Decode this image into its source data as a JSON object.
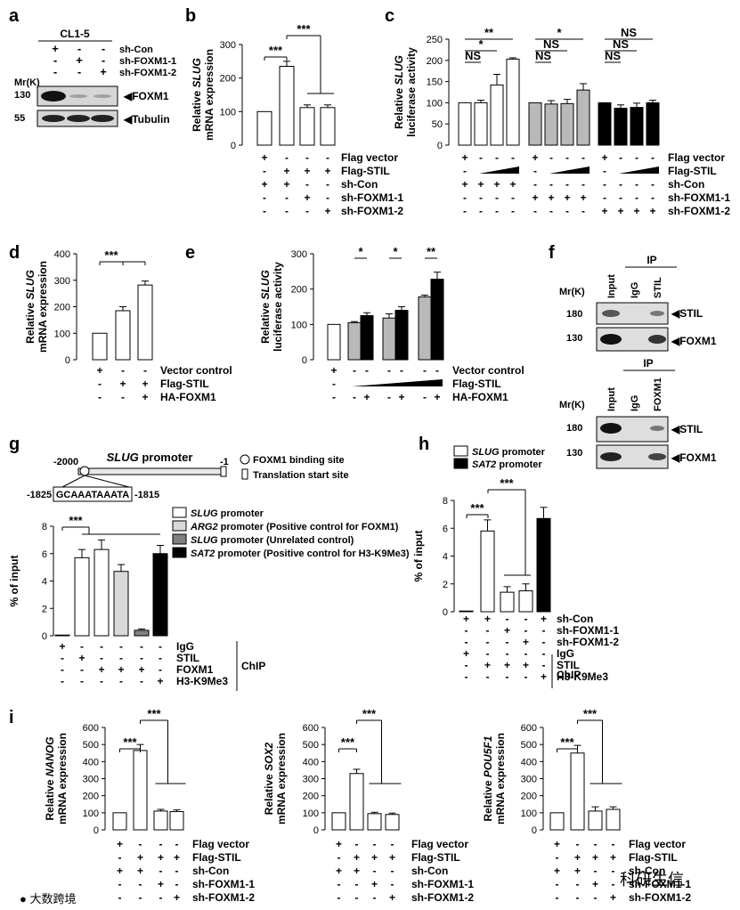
{
  "panels": {
    "a": "a",
    "b": "b",
    "c": "c",
    "d": "d",
    "e": "e",
    "f": "f",
    "g": "g",
    "h": "h",
    "i": "i"
  },
  "a": {
    "cell_line": "CL1-5",
    "rows": [
      "sh-Con",
      "sh-FOXM1-1",
      "sh-FOXM1-2"
    ],
    "signs": [
      [
        "+",
        "-",
        "-"
      ],
      [
        "-",
        "+",
        "-"
      ],
      [
        "-",
        "-",
        "+"
      ]
    ],
    "mr": "Mr(K)",
    "m130": "130",
    "m55": "55",
    "b1": "FOXM1",
    "b2": "Tubulin"
  },
  "chart_data": [
    {
      "id": "b",
      "type": "bar",
      "ylabel_gene": "SLUG",
      "ylabel_pre": "Relative ",
      "ylabel2": "mRNA expression",
      "ylim": [
        0,
        300
      ],
      "yticks": [
        "0",
        "100",
        "200",
        "300"
      ],
      "values": [
        100,
        235,
        112,
        112
      ],
      "errors": [
        0,
        15,
        8,
        8
      ],
      "colors": [
        "#ffffff",
        "#ffffff",
        "#ffffff",
        "#ffffff"
      ],
      "sig": [
        "***",
        "***"
      ],
      "rows": [
        {
          "label": "Flag vector",
          "signs": [
            "+",
            "-",
            "-",
            "-"
          ]
        },
        {
          "label": "Flag-STIL",
          "signs": [
            "-",
            "+",
            "+",
            "+"
          ]
        },
        {
          "label": "sh-Con",
          "signs": [
            "+",
            "+",
            "-",
            "-"
          ]
        },
        {
          "label": "sh-FOXM1-1",
          "signs": [
            "-",
            "-",
            "+",
            "-"
          ]
        },
        {
          "label": "sh-FOXM1-2",
          "signs": [
            "-",
            "-",
            "-",
            "+"
          ]
        }
      ]
    },
    {
      "id": "c",
      "type": "bar",
      "ylabel_gene": "SLUG",
      "ylabel_pre": "Relative ",
      "ylabel2": "luciferase activity",
      "ylim": [
        0,
        250
      ],
      "yticks": [
        "0",
        "50",
        "100",
        "150",
        "200",
        "250"
      ],
      "values": [
        100,
        100,
        142,
        203,
        100,
        97,
        98,
        130,
        100,
        87,
        89,
        100
      ],
      "errors": [
        0,
        6,
        25,
        3,
        0,
        8,
        10,
        15,
        0,
        8,
        10,
        6
      ],
      "colors": [
        "#ffffff",
        "#ffffff",
        "#ffffff",
        "#ffffff",
        "#b9b9b9",
        "#b9b9b9",
        "#b9b9b9",
        "#b9b9b9",
        "#000000",
        "#000000",
        "#000000",
        "#000000"
      ],
      "sig": [
        "**",
        "*",
        "NS",
        "NS",
        "*",
        "NS",
        "NS",
        "NS",
        "NS"
      ],
      "rows": [
        {
          "label": "Flag vector",
          "signs": [
            "+",
            "-",
            "-",
            "-",
            "+",
            "-",
            "-",
            "-",
            "+",
            "-",
            "-",
            "-"
          ]
        },
        {
          "label": "Flag-STIL",
          "signs": [
            "-",
            "",
            "",
            "",
            "-",
            "",
            "",
            "",
            "-",
            "",
            "",
            ""
          ]
        },
        {
          "label": "sh-Con",
          "signs": [
            "+",
            "+",
            "+",
            "+",
            "-",
            "-",
            "-",
            "-",
            "-",
            "-",
            "-",
            "-"
          ]
        },
        {
          "label": "sh-FOXM1-1",
          "signs": [
            "-",
            "-",
            "-",
            "-",
            "+",
            "+",
            "+",
            "+",
            "-",
            "-",
            "-",
            "-"
          ]
        },
        {
          "label": "sh-FOXM1-2",
          "signs": [
            "-",
            "-",
            "-",
            "-",
            "-",
            "-",
            "-",
            "-",
            "+",
            "+",
            "+",
            "+"
          ]
        }
      ]
    },
    {
      "id": "d",
      "type": "bar",
      "ylabel_gene": "SLUG",
      "ylabel_pre": "Relative ",
      "ylabel2": "mRNA expression",
      "ylim": [
        0,
        400
      ],
      "yticks": [
        "0",
        "100",
        "200",
        "300",
        "400"
      ],
      "values": [
        100,
        185,
        282
      ],
      "errors": [
        0,
        15,
        15
      ],
      "colors": [
        "#ffffff",
        "#ffffff",
        "#ffffff"
      ],
      "sig": [
        "***"
      ],
      "rows": [
        {
          "label": "Vector control",
          "signs": [
            "+",
            "-",
            "-"
          ]
        },
        {
          "label": "Flag-STIL",
          "signs": [
            "-",
            "+",
            "+"
          ]
        },
        {
          "label": "HA-FOXM1",
          "signs": [
            "-",
            "-",
            "+"
          ]
        }
      ]
    },
    {
      "id": "e",
      "type": "bar",
      "ylabel_gene": "SLUG",
      "ylabel_pre": "Relative ",
      "ylabel2": "luciferase activity",
      "ylim": [
        0,
        300
      ],
      "yticks": [
        "0",
        "100",
        "200",
        "300"
      ],
      "values": [
        100,
        105,
        125,
        118,
        140,
        178,
        228
      ],
      "errors": [
        0,
        3,
        8,
        12,
        10,
        5,
        20
      ],
      "colors": [
        "#ffffff",
        "#b9b9b9",
        "#000000",
        "#b9b9b9",
        "#000000",
        "#b9b9b9",
        "#000000"
      ],
      "sig": [
        "*",
        "*",
        "**"
      ],
      "rows": [
        {
          "label": "Vector control",
          "signs": [
            "+",
            "-",
            "-",
            "-",
            "-",
            "-",
            "-"
          ]
        },
        {
          "label": "Flag-STIL",
          "signs": [
            "-",
            "",
            "",
            "",
            "",
            "",
            ""
          ]
        },
        {
          "label": "HA-FOXM1",
          "signs": [
            "-",
            "-",
            "+",
            "-",
            "+",
            "-",
            "+"
          ]
        }
      ]
    },
    {
      "id": "g",
      "type": "bar",
      "ylabel_gene": "",
      "ylabel_pre": "% of input",
      "ylabel2": "",
      "ylim": [
        0,
        8
      ],
      "yticks": [
        "0",
        "2",
        "4",
        "6",
        "8"
      ],
      "values": [
        0.05,
        5.7,
        6.3,
        4.7,
        0.4,
        6.0
      ],
      "errors": [
        0,
        0.6,
        0.7,
        0.5,
        0.1,
        0.6
      ],
      "colors": [
        "#ffffff",
        "#ffffff",
        "#ffffff",
        "#d9d9d9",
        "#808080",
        "#000000"
      ],
      "sig": [
        "***"
      ],
      "rows": [
        {
          "label": "IgG",
          "signs": [
            "+",
            "-",
            "-",
            "-",
            "-",
            "-"
          ]
        },
        {
          "label": "STIL",
          "signs": [
            "-",
            "+",
            "-",
            "-",
            "-",
            "-"
          ]
        },
        {
          "label": "FOXM1",
          "signs": [
            "-",
            "-",
            "+",
            "+",
            "+",
            "-"
          ]
        },
        {
          "label": "H3-K9Me3",
          "signs": [
            "-",
            "-",
            "-",
            "-",
            "-",
            "+"
          ]
        }
      ],
      "chip": "ChIP"
    },
    {
      "id": "h",
      "type": "bar",
      "ylabel_gene": "",
      "ylabel_pre": "% of input",
      "ylabel2": "",
      "ylim": [
        0,
        8
      ],
      "yticks": [
        "0",
        "2",
        "4",
        "6",
        "8"
      ],
      "values": [
        0.05,
        5.8,
        1.4,
        1.5,
        6.7
      ],
      "errors": [
        0,
        0.8,
        0.4,
        0.5,
        0.8
      ],
      "colors": [
        "#ffffff",
        "#ffffff",
        "#ffffff",
        "#ffffff",
        "#000000"
      ],
      "sig": [
        "***",
        "***"
      ],
      "rows": [
        {
          "label": "sh-Con",
          "signs": [
            "+",
            "+",
            "-",
            "-",
            "+"
          ]
        },
        {
          "label": "sh-FOXM1-1",
          "signs": [
            "-",
            "-",
            "+",
            "-",
            "-"
          ]
        },
        {
          "label": "sh-FOXM1-2",
          "signs": [
            "-",
            "-",
            "-",
            "+",
            "-"
          ]
        },
        {
          "label": "IgG",
          "signs": [
            "+",
            "-",
            "-",
            "-",
            "-"
          ]
        },
        {
          "label": "STIL",
          "signs": [
            "-",
            "+",
            "+",
            "+",
            "-"
          ]
        },
        {
          "label": "H3-K9Me3",
          "signs": [
            "-",
            "-",
            "-",
            "-",
            "+"
          ]
        }
      ],
      "chip": "ChIP"
    },
    {
      "id": "i1",
      "type": "bar",
      "ylabel_gene": "NANOG",
      "ylabel_pre": "Relative ",
      "ylabel2": "mRNA expression",
      "ylim": [
        0,
        600
      ],
      "yticks": [
        "0",
        "100",
        "200",
        "300",
        "400",
        "500",
        "600"
      ],
      "values": [
        100,
        465,
        110,
        107
      ],
      "errors": [
        0,
        35,
        10,
        10
      ],
      "colors": [
        "#ffffff",
        "#ffffff",
        "#ffffff",
        "#ffffff"
      ],
      "sig": [
        "***",
        "***"
      ],
      "rows": [
        {
          "label": "Flag vector",
          "signs": [
            "+",
            "-",
            "-",
            "-"
          ]
        },
        {
          "label": "Flag-STIL",
          "signs": [
            "-",
            "+",
            "+",
            "+"
          ]
        },
        {
          "label": "sh-Con",
          "signs": [
            "+",
            "+",
            "-",
            "-"
          ]
        },
        {
          "label": "sh-FOXM1-1",
          "signs": [
            "-",
            "-",
            "+",
            "-"
          ]
        },
        {
          "label": "sh-FOXM1-2",
          "signs": [
            "-",
            "-",
            "-",
            "+"
          ]
        }
      ]
    },
    {
      "id": "i2",
      "type": "bar",
      "ylabel_gene": "SOX2",
      "ylabel_pre": "Relative ",
      "ylabel2": "mRNA expression",
      "ylim": [
        0,
        600
      ],
      "yticks": [
        "0",
        "100",
        "200",
        "300",
        "400",
        "500",
        "600"
      ],
      "values": [
        100,
        330,
        95,
        90
      ],
      "errors": [
        0,
        25,
        8,
        8
      ],
      "colors": [
        "#ffffff",
        "#ffffff",
        "#ffffff",
        "#ffffff"
      ],
      "sig": [
        "***",
        "***"
      ],
      "rows": [
        {
          "label": "Flag vector",
          "signs": [
            "+",
            "-",
            "-",
            "-"
          ]
        },
        {
          "label": "Flag-STIL",
          "signs": [
            "-",
            "+",
            "+",
            "+"
          ]
        },
        {
          "label": "sh-Con",
          "signs": [
            "+",
            "+",
            "-",
            "-"
          ]
        },
        {
          "label": "sh-FOXM1-1",
          "signs": [
            "-",
            "-",
            "+",
            "-"
          ]
        },
        {
          "label": "sh-FOXM1-2",
          "signs": [
            "-",
            "-",
            "-",
            "+"
          ]
        }
      ]
    },
    {
      "id": "i3",
      "type": "bar",
      "ylabel_gene": "POU5F1",
      "ylabel_pre": "Relative ",
      "ylabel2": "mRNA expression",
      "ylim": [
        0,
        600
      ],
      "yticks": [
        "0",
        "100",
        "200",
        "300",
        "400",
        "500",
        "600"
      ],
      "values": [
        100,
        450,
        110,
        120
      ],
      "errors": [
        0,
        45,
        25,
        15
      ],
      "colors": [
        "#ffffff",
        "#ffffff",
        "#ffffff",
        "#ffffff"
      ],
      "sig": [
        "***",
        "***"
      ],
      "rows": [
        {
          "label": "Flag vector",
          "signs": [
            "+",
            "-",
            "-",
            "-"
          ]
        },
        {
          "label": "Flag-STIL",
          "signs": [
            "-",
            "+",
            "+",
            "+"
          ]
        },
        {
          "label": "sh-Con",
          "signs": [
            "+",
            "+",
            "-",
            "-"
          ]
        },
        {
          "label": "sh-FOXM1-1",
          "signs": [
            "-",
            "-",
            "+",
            "-"
          ]
        },
        {
          "label": "sh-FOXM1-2",
          "signs": [
            "-",
            "-",
            "-",
            "+"
          ]
        }
      ]
    }
  ],
  "f": {
    "ip": "IP",
    "mr": "Mr(K)",
    "lanes1": [
      "Input",
      "IgG",
      "STIL"
    ],
    "lanes2": [
      "Input",
      "IgG",
      "FOXM1"
    ],
    "m180": "180",
    "m130": "130",
    "b1": "STIL",
    "b2": "FOXM1"
  },
  "g": {
    "promoter": "SLUG promoter",
    "p2000": "-2000",
    "p1": "-1",
    "seq": "GCAAATAAATA",
    "p1825": "-1825",
    "p1815": "-1815",
    "site": "FOXM1 binding site",
    "tss": "Translation start site",
    "legend": [
      {
        "gene": "SLUG",
        "rest": " promoter"
      },
      {
        "gene": "ARG2",
        "rest": " promoter (Positive control for FOXM1)"
      },
      {
        "gene": "SLUG",
        "rest": " promoter (Unrelated control)"
      },
      {
        "gene": "SAT2",
        "rest": " promoter (Positive control for H3-K9Me3)"
      }
    ],
    "legend_colors": [
      "#ffffff",
      "#d9d9d9",
      "#808080",
      "#000000"
    ]
  },
  "h": {
    "legend": [
      {
        "gene": "SLUG",
        "rest": " promoter"
      },
      {
        "gene": "SAT2",
        "rest": " promoter"
      }
    ],
    "legend_colors": [
      "#ffffff",
      "#000000"
    ]
  },
  "watermark": {
    "left": "大数跨境",
    "right": "科研生信"
  }
}
